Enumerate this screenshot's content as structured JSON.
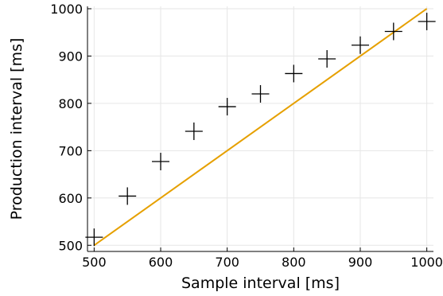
{
  "chart_data": {
    "type": "scatter",
    "title": "",
    "xlabel": "Sample interval [ms]",
    "ylabel": "Production interval [ms]",
    "xlim": [
      490,
      1010
    ],
    "ylim": [
      487,
      1005
    ],
    "xticks": [
      500,
      600,
      700,
      800,
      900,
      1000
    ],
    "yticks": [
      500,
      600,
      700,
      800,
      900,
      1000
    ],
    "grid": true,
    "legend": "none",
    "series": [
      {
        "marker": "cross",
        "color": "#000000",
        "x": [
          500,
          550,
          600,
          650,
          700,
          750,
          800,
          850,
          900,
          950,
          1000
        ],
        "y": [
          517,
          604,
          677,
          741,
          793,
          820,
          863,
          894,
          923,
          952,
          973
        ]
      }
    ],
    "reference_line": {
      "color": "#e6a000",
      "x": [
        500,
        1000
      ],
      "y": [
        500,
        1000
      ]
    }
  }
}
